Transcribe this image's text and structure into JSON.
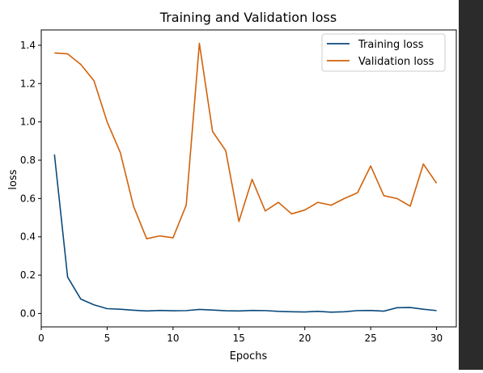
{
  "chart_data": {
    "type": "line",
    "title": "Training and Validation loss",
    "xlabel": "Epochs",
    "ylabel": "loss",
    "xlim": [
      0,
      31.5
    ],
    "ylim": [
      -0.07,
      1.48
    ],
    "xticks": [
      0,
      5,
      10,
      15,
      20,
      25,
      30
    ],
    "yticks": [
      0.0,
      0.2,
      0.4,
      0.6,
      0.8,
      1.0,
      1.2,
      1.4
    ],
    "x": [
      1,
      2,
      3,
      4,
      5,
      6,
      7,
      8,
      9,
      10,
      11,
      12,
      13,
      14,
      15,
      16,
      17,
      18,
      19,
      20,
      21,
      22,
      23,
      24,
      25,
      26,
      27,
      28,
      29,
      30
    ],
    "series": [
      {
        "name": "Training loss",
        "color": "#0b4a7c",
        "values": [
          0.83,
          0.19,
          0.075,
          0.045,
          0.025,
          0.022,
          0.017,
          0.013,
          0.016,
          0.014,
          0.015,
          0.021,
          0.018,
          0.014,
          0.013,
          0.016,
          0.015,
          0.011,
          0.009,
          0.008,
          0.011,
          0.007,
          0.009,
          0.015,
          0.016,
          0.012,
          0.03,
          0.031,
          0.022,
          0.015
        ]
      },
      {
        "name": "Validation loss",
        "color": "#d2620a",
        "values": [
          1.36,
          1.355,
          1.3,
          1.215,
          1.0,
          0.84,
          0.56,
          0.39,
          0.405,
          0.395,
          0.565,
          1.41,
          0.95,
          0.85,
          0.48,
          0.7,
          0.535,
          0.58,
          0.52,
          0.54,
          0.58,
          0.565,
          0.6,
          0.63,
          0.77,
          0.615,
          0.6,
          0.56,
          0.78,
          0.68
        ]
      }
    ],
    "grid": false,
    "legend_position": "top-right"
  }
}
